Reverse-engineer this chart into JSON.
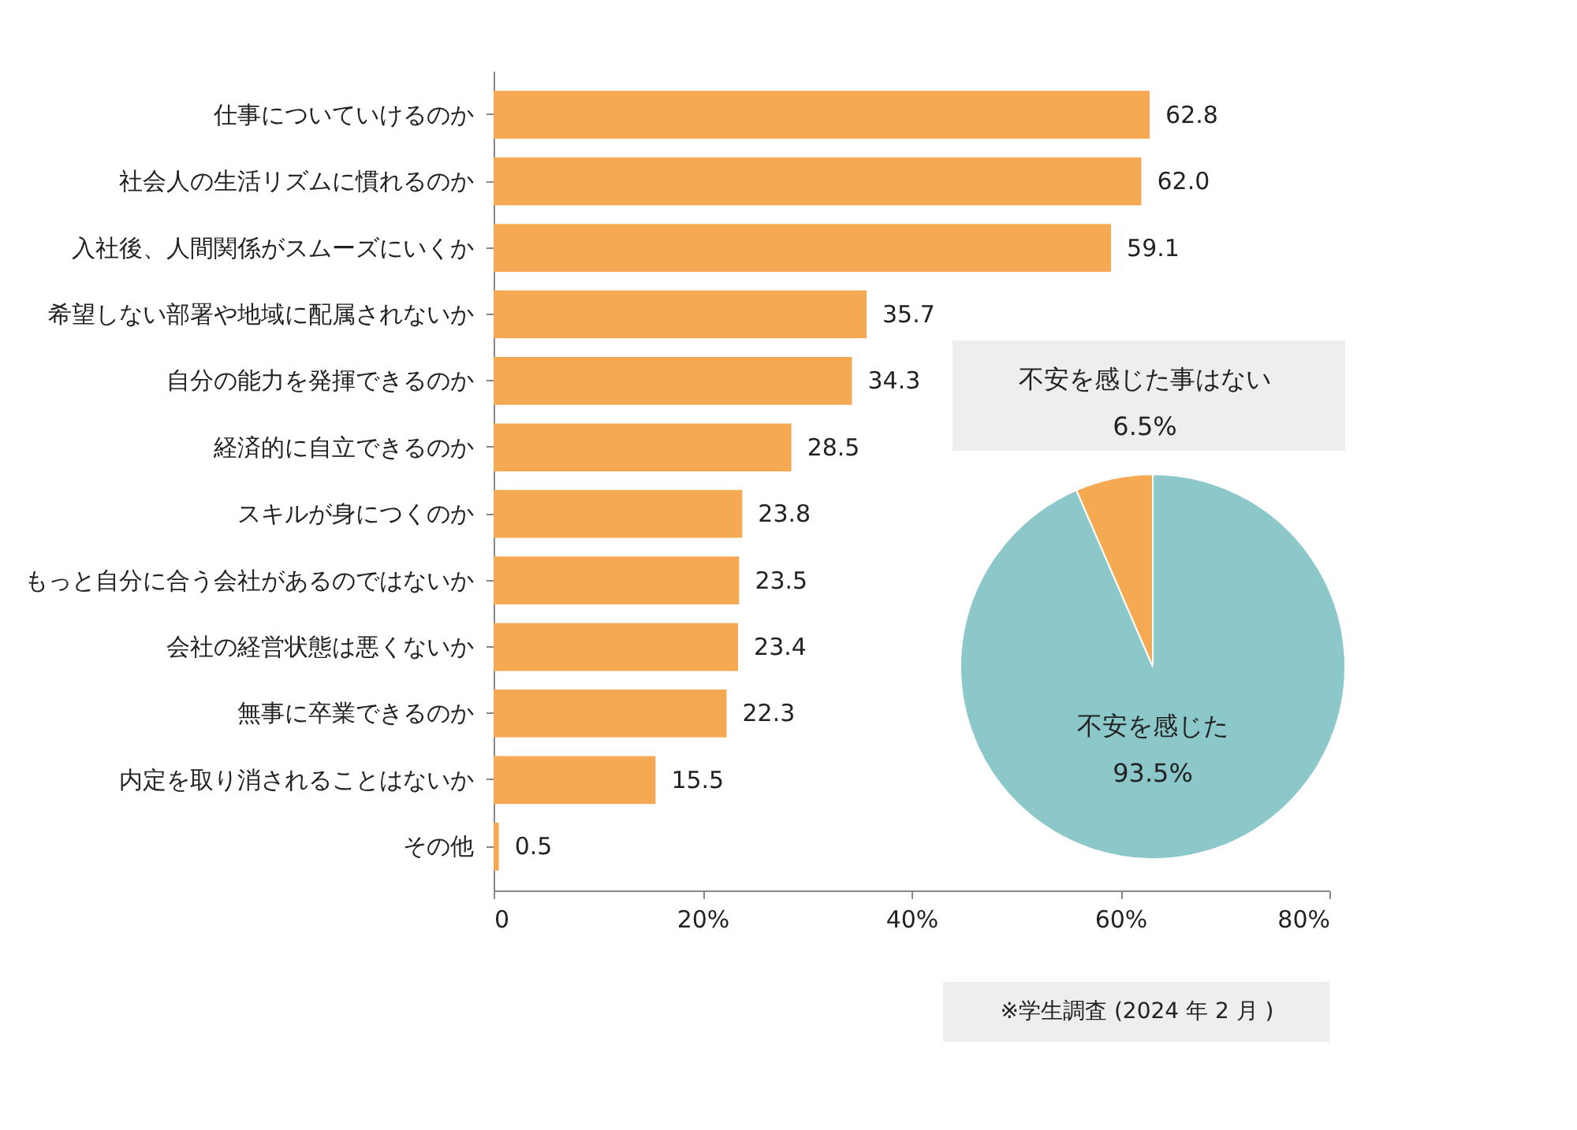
{
  "chart_data": [
    {
      "type": "bar",
      "orientation": "horizontal",
      "categories": [
        "仕事についていけるのか",
        "社会人の生活リズムに慣れるのか",
        "入社後、人間関係がスムーズにいくか",
        "希望しない部署や地域に配属されないか",
        "自分の能力を発揮できるのか",
        "経済的に自立できるのか",
        "スキルが身につくのか",
        "もっと自分に合う会社があるのではないか",
        "会社の経営状態は悪くないか",
        "無事に卒業できるのか",
        "内定を取り消されることはないか",
        "その他"
      ],
      "values": [
        62.8,
        62.0,
        59.1,
        35.7,
        34.3,
        28.5,
        23.8,
        23.5,
        23.4,
        22.3,
        15.5,
        0.5
      ],
      "value_labels": [
        "62.8",
        "62.0",
        "59.1",
        "35.7",
        "34.3",
        "28.5",
        "23.8",
        "23.5",
        "23.4",
        "22.3",
        "15.5",
        "0.5"
      ],
      "color": "#f5a953",
      "xlim": [
        0,
        80
      ],
      "xticks": [
        0,
        {
          "value": 20,
          "label": "20%"
        },
        {
          "value": 40,
          "label": "40%"
        },
        {
          "value": 60,
          "label": "60%"
        },
        {
          "value": 80,
          "label": "80%"
        }
      ],
      "grid": false,
      "legend": false,
      "annotations": [
        "※学生調査 (2024 年 2 月 )"
      ]
    },
    {
      "type": "pie",
      "categories": [
        "不安を感じた",
        "不安を感じた事はない"
      ],
      "values": [
        93.5,
        6.5
      ],
      "colors": [
        "#8cc8c9",
        "#f5a953"
      ],
      "value_labels": [
        "93.5%",
        "6.5%"
      ],
      "legend": false
    }
  ]
}
